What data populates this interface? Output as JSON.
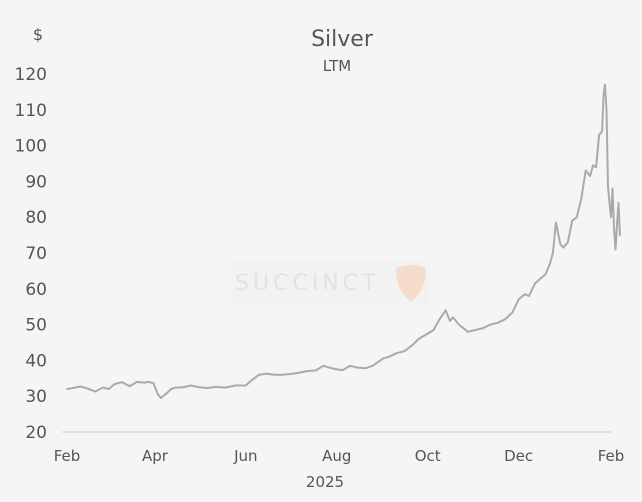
{
  "chart_data": {
    "type": "line",
    "title": "Silver",
    "subtitle": "LTM",
    "y_unit_label": "$",
    "ylim": [
      20,
      120
    ],
    "yticks": [
      20,
      30,
      40,
      50,
      60,
      70,
      80,
      90,
      100,
      110,
      120
    ],
    "x_tick_labels": [
      "Feb",
      "Apr",
      "Jun",
      "Aug",
      "Oct",
      "Dec",
      "Feb"
    ],
    "x_tick_dates": [
      "2025-02-01",
      "2025-04-01",
      "2025-06-01",
      "2025-08-01",
      "2025-10-01",
      "2025-12-01",
      "2026-02-01"
    ],
    "xlabel": "2025",
    "grid": false,
    "line_color": "#aaaaaa",
    "series": [
      {
        "x": [
          "2025-02-01",
          "2025-02-05",
          "2025-02-10",
          "2025-02-15",
          "2025-02-20",
          "2025-02-25",
          "2025-03-01",
          "2025-03-05",
          "2025-03-10",
          "2025-03-15",
          "2025-03-20",
          "2025-03-25",
          "2025-03-28",
          "2025-03-31",
          "2025-04-03",
          "2025-04-05",
          "2025-04-08",
          "2025-04-12",
          "2025-04-15",
          "2025-04-20",
          "2025-04-25",
          "2025-05-01",
          "2025-05-06",
          "2025-05-12",
          "2025-05-18",
          "2025-05-25",
          "2025-06-01",
          "2025-06-05",
          "2025-06-10",
          "2025-06-15",
          "2025-06-20",
          "2025-06-25",
          "2025-07-01",
          "2025-07-06",
          "2025-07-12",
          "2025-07-18",
          "2025-07-23",
          "2025-07-27",
          "2025-08-01",
          "2025-08-05",
          "2025-08-10",
          "2025-08-15",
          "2025-08-20",
          "2025-08-25",
          "2025-09-01",
          "2025-09-05",
          "2025-09-10",
          "2025-09-15",
          "2025-09-20",
          "2025-09-25",
          "2025-10-01",
          "2025-10-05",
          "2025-10-09",
          "2025-10-13",
          "2025-10-16",
          "2025-10-18",
          "2025-10-22",
          "2025-10-28",
          "2025-11-02",
          "2025-11-07",
          "2025-11-12",
          "2025-11-17",
          "2025-11-22",
          "2025-11-27",
          "2025-12-01",
          "2025-12-05",
          "2025-12-08",
          "2025-12-12",
          "2025-12-16",
          "2025-12-19",
          "2025-12-22",
          "2025-12-24",
          "2025-12-26",
          "2025-12-29",
          "2025-12-31",
          "2026-01-03",
          "2026-01-06",
          "2026-01-09",
          "2026-01-12",
          "2026-01-15",
          "2026-01-18",
          "2026-01-20",
          "2026-01-22",
          "2026-01-24",
          "2026-01-26",
          "2026-01-27",
          "2026-01-28",
          "2026-01-29",
          "2026-01-30",
          "2026-01-31",
          "2026-02-01",
          "2026-02-02",
          "2026-02-03",
          "2026-02-04",
          "2026-02-05",
          "2026-02-06",
          "2026-02-07"
        ],
        "values": [
          32.0,
          32.3,
          32.7,
          32.1,
          31.3,
          32.4,
          32.0,
          33.4,
          33.9,
          32.8,
          34.0,
          33.8,
          34.0,
          33.6,
          30.5,
          29.5,
          30.5,
          32.0,
          32.4,
          32.5,
          33.0,
          32.5,
          32.3,
          32.6,
          32.4,
          33.0,
          33.0,
          34.5,
          36.0,
          36.3,
          36.0,
          36.0,
          36.2,
          36.5,
          37.0,
          37.2,
          38.5,
          38.0,
          37.5,
          37.3,
          38.5,
          38.0,
          37.8,
          38.5,
          40.5,
          41.0,
          42.0,
          42.5,
          44.0,
          46.0,
          47.5,
          48.5,
          51.5,
          54.0,
          51.0,
          52.0,
          50.0,
          48.0,
          48.5,
          49.0,
          50.0,
          50.5,
          51.5,
          53.5,
          57.0,
          58.5,
          58.0,
          61.5,
          63.0,
          64.0,
          67.0,
          70.0,
          78.5,
          72.5,
          71.5,
          73.0,
          79.0,
          80.0,
          85.0,
          93.0,
          91.5,
          94.5,
          94.0,
          103.0,
          104.0,
          114.0,
          117.0,
          110.0,
          88.5,
          84.0,
          80.0,
          88.0,
          77.0,
          71.0,
          78.0,
          84.0,
          75.0
        ]
      }
    ],
    "watermark": "SUCCINCT"
  }
}
